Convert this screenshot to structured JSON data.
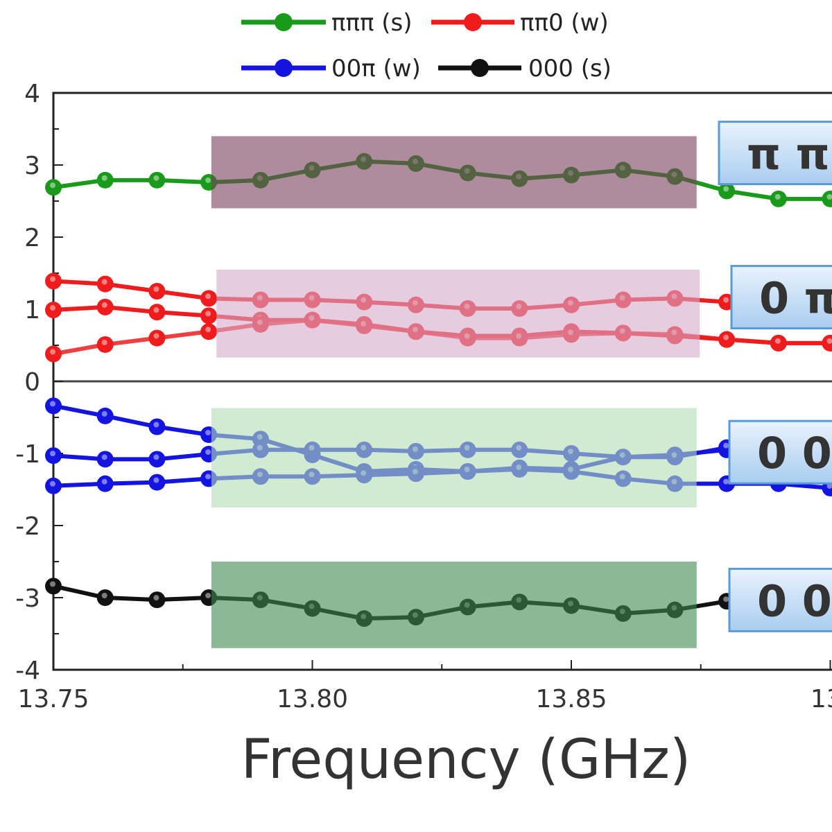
{
  "chart_data": {
    "type": "line",
    "xlabel": "Frequency (GHz)",
    "ylabel": "",
    "xlim": [
      13.75,
      13.9
    ],
    "ylim": [
      -4,
      4
    ],
    "x_tick_labels": [
      "13.75",
      "13.80",
      "13.85",
      "13."
    ],
    "y_tick_labels_upper": [
      "4",
      "3",
      "2",
      "1",
      "0"
    ],
    "y_tick_labels_lower": [
      "-1",
      "-2",
      "-3",
      "-4"
    ],
    "legend_placement": "top",
    "x": [
      13.75,
      13.76,
      13.77,
      13.78,
      13.79,
      13.8,
      13.81,
      13.82,
      13.83,
      13.84,
      13.85,
      13.86,
      13.87,
      13.88,
      13.89,
      13.9
    ],
    "series": [
      {
        "name": "πππ (s)",
        "color": "#1a9a1a",
        "lines": [
          [
            2.69,
            2.79,
            2.79,
            2.76,
            2.79,
            2.93,
            3.05,
            3.02,
            2.89,
            2.81,
            2.86,
            2.93,
            2.84,
            2.64,
            2.53,
            2.53
          ]
        ]
      },
      {
        "name": "ππ0 (w)",
        "color": "#ee1c1c",
        "lines": [
          [
            1.39,
            1.35,
            1.25,
            1.15,
            1.13,
            1.13,
            1.1,
            1.06,
            1.01,
            1.01,
            1.06,
            1.13,
            1.15,
            1.1,
            1.06,
            1.06
          ],
          [
            0.99,
            1.03,
            0.96,
            0.91,
            0.85,
            0.85,
            0.79,
            0.69,
            0.63,
            0.63,
            0.69,
            0.67,
            0.63,
            0.58,
            0.53,
            0.53
          ],
          [
            0.38,
            0.51,
            0.6,
            0.69,
            0.79,
            0.85,
            0.77,
            0.69,
            0.6,
            0.6,
            0.65,
            0.67,
            0.65,
            0.58,
            0.53,
            0.53
          ]
        ]
      },
      {
        "name": "00π (w)",
        "color": "#1414e0",
        "lines": [
          [
            -0.34,
            -0.48,
            -0.63,
            -0.74,
            -0.8,
            -1.02,
            -1.25,
            -1.22,
            -1.25,
            -1.2,
            -1.22,
            -1.05,
            -1.02,
            -0.95,
            -0.92,
            -0.92
          ],
          [
            -1.03,
            -1.08,
            -1.08,
            -1.01,
            -0.95,
            -0.95,
            -0.95,
            -0.97,
            -0.95,
            -0.95,
            -1.0,
            -1.05,
            -1.05,
            -0.92,
            -0.92,
            -0.92
          ],
          [
            -1.45,
            -1.42,
            -1.4,
            -1.35,
            -1.32,
            -1.32,
            -1.3,
            -1.28,
            -1.25,
            -1.22,
            -1.25,
            -1.35,
            -1.42,
            -1.42,
            -1.42,
            -1.48
          ]
        ]
      },
      {
        "name": "000 (s)",
        "color": "#111111",
        "lines": [
          [
            -2.84,
            -3.0,
            -3.03,
            -3.0,
            -3.03,
            -3.15,
            -3.29,
            -3.27,
            -3.13,
            -3.06,
            -3.11,
            -3.22,
            -3.17,
            -3.05,
            -3.0,
            -3.0
          ]
        ]
      }
    ],
    "shaded_regions": [
      {
        "x": [
          13.7805,
          13.8742
        ],
        "y": [
          2.4,
          3.4
        ],
        "color": "#7a3f5c"
      },
      {
        "x": [
          13.7815,
          13.8748
        ],
        "y": [
          0.33,
          1.55
        ],
        "color": "#d7a9c9"
      },
      {
        "x": [
          13.7805,
          13.8742
        ],
        "y": [
          -1.75,
          -0.37
        ],
        "color": "#b3ddb5"
      },
      {
        "x": [
          13.7805,
          13.8742
        ],
        "y": [
          -3.7,
          -2.5
        ],
        "color": "#3e8a52"
      }
    ],
    "annotations": [
      {
        "text": "π π",
        "y": 3.6
      },
      {
        "text": "0 π",
        "y": 1.6
      },
      {
        "text": "0 0",
        "y": -0.55
      },
      {
        "text": "0 0",
        "y": -2.6
      }
    ]
  }
}
